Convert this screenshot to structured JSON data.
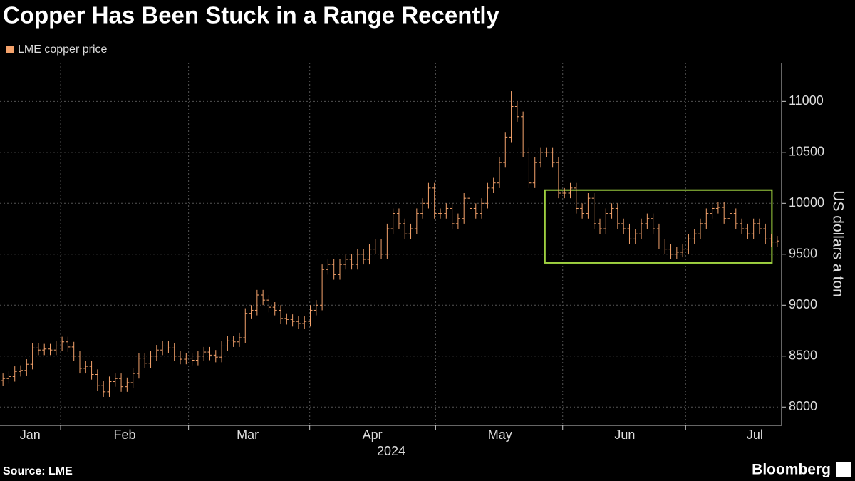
{
  "chart_data": {
    "type": "ohlc",
    "title": "Copper Has Been Stuck in a Range Recently",
    "source": "Source: LME",
    "brand": "Bloomberg",
    "ylabel": "US dollars a ton",
    "xlabel": "2024",
    "ylim": [
      7820,
      11380
    ],
    "yticks": [
      8000,
      8500,
      9000,
      9500,
      10000,
      10500,
      11000
    ],
    "xlim": [
      -0.5,
      131.5
    ],
    "xticks": [
      {
        "value": 4.6,
        "label": "Jan"
      },
      {
        "value": 20.6,
        "label": "Feb"
      },
      {
        "value": 41.4,
        "label": "Mar"
      },
      {
        "value": 62.5,
        "label": "Apr"
      },
      {
        "value": 84.1,
        "label": "May"
      },
      {
        "value": 105.2,
        "label": "Jun"
      },
      {
        "value": 127.2,
        "label": "Jul"
      }
    ],
    "month_boundaries": [
      9.75,
      31.4,
      51.9,
      73.2,
      94.7,
      115.5
    ],
    "grid": true,
    "annotation_box": {
      "x": [
        91.7,
        130.1
      ],
      "y": [
        9415,
        10130
      ],
      "color": "#9ed040"
    },
    "series": [
      {
        "name": "LME copper price",
        "color": "#f5a36c",
        "open": [
          8260,
          8280,
          8300,
          8350,
          8360,
          8420,
          8580,
          8560,
          8570,
          8560,
          8600,
          8640,
          8590,
          8500,
          8380,
          8400,
          8320,
          8210,
          8150,
          8250,
          8280,
          8200,
          8240,
          8330,
          8480,
          8430,
          8500,
          8560,
          8600,
          8580,
          8500,
          8470,
          8480,
          8460,
          8500,
          8540,
          8510,
          8490,
          8600,
          8650,
          8640,
          8680,
          8920,
          8950,
          9100,
          9050,
          8980,
          8950,
          8870,
          8860,
          8840,
          8820,
          8840,
          8950,
          9000,
          9350,
          9400,
          9300,
          9400,
          9450,
          9400,
          9500,
          9450,
          9550,
          9600,
          9500,
          9750,
          9900,
          9800,
          9700,
          9750,
          9900,
          10000,
          10150,
          9900,
          9900,
          9950,
          9800,
          9850,
          10050,
          9950,
          9900,
          10000,
          10150,
          10200,
          10400,
          10650,
          10950,
          10850,
          10500,
          10200,
          10400,
          10500,
          10500,
          10400,
          10100,
          10100,
          10150,
          9950,
          9900,
          10050,
          9800,
          9750,
          9900,
          9950,
          9800,
          9750,
          9650,
          9700,
          9800,
          9850,
          9750,
          9600,
          9550,
          9500,
          9520,
          9550,
          9650,
          9700,
          9800,
          9900,
          9950,
          9960,
          9850,
          9900,
          9800,
          9750,
          9700,
          9800,
          9750,
          9650,
          9620
        ],
        "high": [
          8330,
          8350,
          8400,
          8410,
          8470,
          8630,
          8630,
          8620,
          8620,
          8650,
          8690,
          8690,
          8640,
          8550,
          8450,
          8450,
          8370,
          8260,
          8300,
          8330,
          8330,
          8290,
          8380,
          8530,
          8530,
          8550,
          8610,
          8650,
          8650,
          8630,
          8550,
          8530,
          8530,
          8550,
          8590,
          8590,
          8560,
          8650,
          8700,
          8700,
          8730,
          8970,
          9000,
          9150,
          9150,
          9100,
          9030,
          9000,
          8920,
          8910,
          8890,
          8890,
          9000,
          9050,
          9400,
          9450,
          9450,
          9450,
          9500,
          9500,
          9550,
          9550,
          9600,
          9650,
          9650,
          9800,
          9950,
          9950,
          9850,
          9800,
          9950,
          10050,
          10200,
          10200,
          9950,
          10000,
          10000,
          9900,
          10100,
          10100,
          10000,
          10050,
          10200,
          10250,
          10450,
          10700,
          11100,
          11000,
          10900,
          10550,
          10450,
          10550,
          10550,
          10550,
          10450,
          10150,
          10200,
          10200,
          10000,
          10100,
          10100,
          9850,
          9950,
          10000,
          10000,
          9850,
          9800,
          9750,
          9850,
          9900,
          9900,
          9800,
          9650,
          9600,
          9570,
          9600,
          9700,
          9750,
          9850,
          9950,
          10000,
          10010,
          10010,
          9950,
          9950,
          9850,
          9800,
          9850,
          9850,
          9800,
          9700,
          9680
        ],
        "low": [
          8210,
          8230,
          8250,
          8300,
          8310,
          8370,
          8510,
          8510,
          8510,
          8510,
          8550,
          8540,
          8450,
          8330,
          8330,
          8270,
          8160,
          8100,
          8100,
          8200,
          8150,
          8150,
          8190,
          8280,
          8380,
          8380,
          8450,
          8510,
          8530,
          8450,
          8420,
          8420,
          8410,
          8410,
          8450,
          8460,
          8440,
          8440,
          8550,
          8590,
          8590,
          8630,
          8870,
          8900,
          9000,
          8930,
          8900,
          8820,
          8810,
          8790,
          8770,
          8770,
          8790,
          8900,
          8950,
          9300,
          9250,
          9250,
          9350,
          9350,
          9350,
          9400,
          9400,
          9500,
          9450,
          9450,
          9700,
          9750,
          9650,
          9650,
          9700,
          9850,
          9950,
          9850,
          9850,
          9850,
          9750,
          9750,
          9800,
          9900,
          9850,
          9850,
          9950,
          10100,
          10150,
          10350,
          10600,
          10800,
          10450,
          10150,
          10150,
          10350,
          10450,
          10350,
          10050,
          10050,
          10050,
          9900,
          9850,
          9850,
          9750,
          9700,
          9700,
          9850,
          9750,
          9700,
          9600,
          9600,
          9650,
          9750,
          9700,
          9550,
          9500,
          9450,
          9450,
          9470,
          9500,
          9600,
          9650,
          9750,
          9850,
          9900,
          9800,
          9800,
          9750,
          9700,
          9650,
          9650,
          9700,
          9600,
          9570,
          9570
        ],
        "close": [
          8280,
          8300,
          8350,
          8360,
          8420,
          8580,
          8560,
          8570,
          8560,
          8600,
          8640,
          8590,
          8500,
          8380,
          8400,
          8320,
          8210,
          8150,
          8250,
          8280,
          8200,
          8240,
          8330,
          8480,
          8430,
          8500,
          8560,
          8600,
          8580,
          8500,
          8470,
          8480,
          8460,
          8500,
          8540,
          8510,
          8490,
          8600,
          8650,
          8640,
          8680,
          8920,
          8950,
          9100,
          9050,
          8980,
          8950,
          8870,
          8860,
          8840,
          8820,
          8840,
          8950,
          9000,
          9350,
          9400,
          9300,
          9400,
          9450,
          9400,
          9500,
          9450,
          9550,
          9600,
          9500,
          9750,
          9900,
          9800,
          9700,
          9750,
          9900,
          10000,
          10150,
          9900,
          9900,
          9950,
          9800,
          9850,
          10050,
          9950,
          9900,
          10000,
          10150,
          10200,
          10400,
          10650,
          10950,
          10850,
          10500,
          10200,
          10400,
          10500,
          10500,
          10400,
          10100,
          10100,
          10150,
          9950,
          9900,
          10050,
          9800,
          9750,
          9900,
          9950,
          9800,
          9750,
          9650,
          9700,
          9800,
          9850,
          9750,
          9600,
          9550,
          9500,
          9520,
          9550,
          9650,
          9700,
          9800,
          9900,
          9950,
          9960,
          9850,
          9900,
          9800,
          9750,
          9700,
          9800,
          9750,
          9650,
          9620,
          9630
        ]
      }
    ]
  }
}
